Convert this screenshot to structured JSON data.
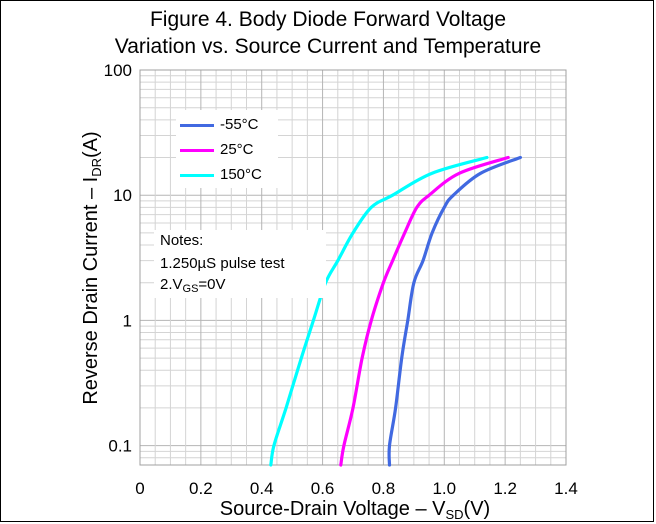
{
  "chart_data": {
    "type": "line",
    "title": [
      "Figure 4. Body Diode Forward Voltage",
      "Variation vs. Source Current and Temperature"
    ],
    "ylabel": {
      "main": "Reverse Drain Current  –  I",
      "sub": "DR",
      "tail": "(A)"
    },
    "xlabel": {
      "main": "Source-Drain Voltage –  V",
      "sub": "SD",
      "tail": "(V)"
    },
    "xlim": [
      0,
      1.4
    ],
    "ylim": [
      0.07,
      100
    ],
    "yscale": "log",
    "grid": true,
    "legend_position": "top-left",
    "x_ticks": [
      0,
      0.2,
      0.4,
      0.6,
      0.8,
      1.0,
      1.2,
      1.4
    ],
    "x_tick_labels": [
      "0",
      "0.2",
      "0.4",
      "0.6",
      "0.8",
      "1.0",
      "1.2",
      "1.4"
    ],
    "y_ticks": [
      0.1,
      1,
      10,
      100
    ],
    "y_tick_labels": [
      "0.1",
      "1",
      "10",
      "100"
    ],
    "series": [
      {
        "name": "-55°C",
        "color": "#4169e1",
        "points": [
          [
            0.82,
            0.07
          ],
          [
            0.82,
            0.1
          ],
          [
            0.84,
            0.2
          ],
          [
            0.86,
            0.5
          ],
          [
            0.88,
            1
          ],
          [
            0.9,
            2
          ],
          [
            0.93,
            3
          ],
          [
            0.96,
            5
          ],
          [
            1.0,
            8
          ],
          [
            1.03,
            10
          ],
          [
            1.12,
            15
          ],
          [
            1.25,
            20
          ]
        ]
      },
      {
        "name": "25°C",
        "color": "#ff00ff",
        "points": [
          [
            0.66,
            0.07
          ],
          [
            0.67,
            0.1
          ],
          [
            0.7,
            0.2
          ],
          [
            0.73,
            0.5
          ],
          [
            0.76,
            1
          ],
          [
            0.8,
            2
          ],
          [
            0.83,
            3
          ],
          [
            0.87,
            5
          ],
          [
            0.91,
            8
          ],
          [
            0.95,
            10
          ],
          [
            1.05,
            15
          ],
          [
            1.21,
            20
          ]
        ]
      },
      {
        "name": "150°C",
        "color": "#00ffff",
        "points": [
          [
            0.43,
            0.07
          ],
          [
            0.44,
            0.1
          ],
          [
            0.48,
            0.2
          ],
          [
            0.53,
            0.5
          ],
          [
            0.57,
            1
          ],
          [
            0.61,
            2
          ],
          [
            0.65,
            3
          ],
          [
            0.7,
            5
          ],
          [
            0.76,
            8
          ],
          [
            0.83,
            10
          ],
          [
            0.96,
            15
          ],
          [
            1.14,
            20
          ]
        ]
      }
    ],
    "notes": {
      "heading": "Notes:",
      "line1": "1.250µS pulse test",
      "line2_main": "2.V",
      "line2_sub": "GS",
      "line2_tail": "=0V"
    }
  }
}
